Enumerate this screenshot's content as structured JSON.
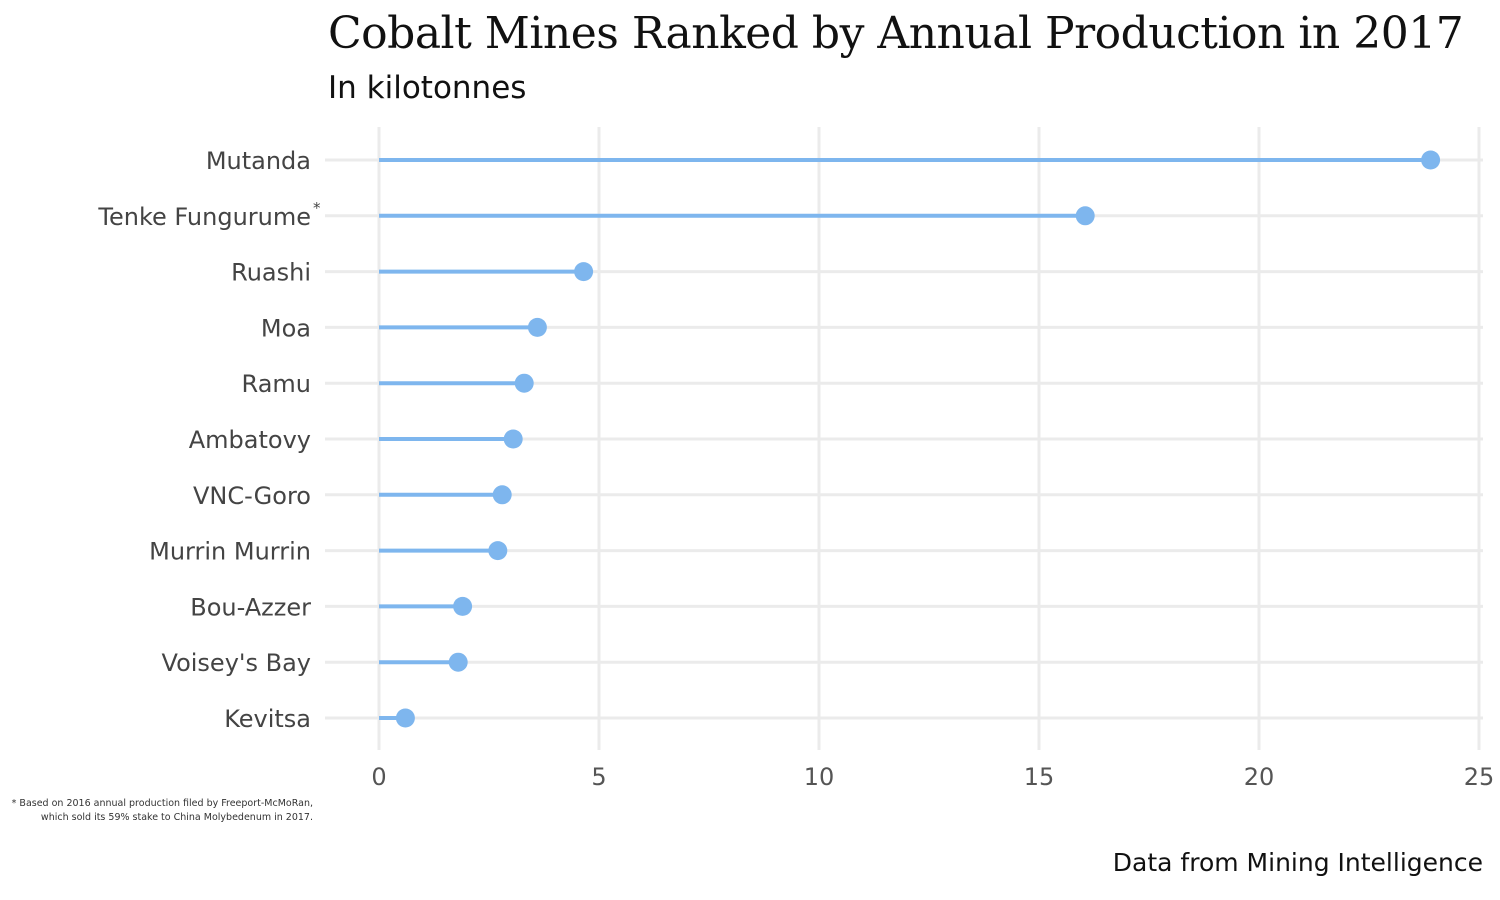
{
  "chart_data": {
    "type": "lollipop",
    "title": "Cobalt Mines Ranked by Annual Production in 2017",
    "subtitle": "In kilotonnes",
    "categories": [
      "Mutanda",
      "Tenke Fungurume*",
      "Ruashi",
      "Moa",
      "Ramu",
      "Ambatovy",
      "VNC-Goro",
      "Murrin Murrin",
      "Bou-Azzer",
      "Voisey's Bay",
      "Kevitsa"
    ],
    "values": [
      23.9,
      16.05,
      4.65,
      3.6,
      3.3,
      3.05,
      2.8,
      2.7,
      1.9,
      1.8,
      0.6
    ],
    "xlim": [
      0,
      25
    ],
    "xticks": [
      "0",
      "5",
      "10",
      "15",
      "20",
      "25"
    ],
    "grid": true,
    "color": "#7EB6EE",
    "footnote": "* Based on 2016 annual production filed by Freeport-McMoRan, which sold its 59% stake to China Molybedenum in 2017.",
    "caption": "Data from Mining Intelligence"
  }
}
